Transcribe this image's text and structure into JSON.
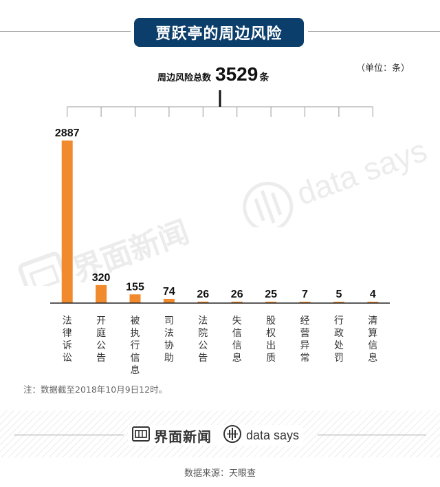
{
  "title": "贾跃亭的周边风险",
  "unit_note": "（单位：条）",
  "total": {
    "label": "周边风险总数",
    "value": "3529",
    "suffix": "条"
  },
  "note": "注：数据截至2018年10月9日12时。",
  "footer": {
    "brand_cn": "界面新闻",
    "brand_en": "data says"
  },
  "watermark": {
    "cn": "界面新闻",
    "en": "data says"
  },
  "source": "数据来源：天眼查",
  "colors": {
    "bar": "#f08a2c",
    "banner": "#0c3e6b",
    "axis": "#222222"
  },
  "chart_data": {
    "type": "bar",
    "categories": [
      "法律诉讼",
      "开庭公告",
      "被执行信息",
      "司法协助",
      "法院公告",
      "失信信息",
      "股权出质",
      "经营异常",
      "行政处罚",
      "清算信息"
    ],
    "values": [
      2887,
      320,
      155,
      74,
      26,
      26,
      25,
      7,
      5,
      4
    ],
    "title": "",
    "xlabel": "",
    "ylabel": ""
  }
}
